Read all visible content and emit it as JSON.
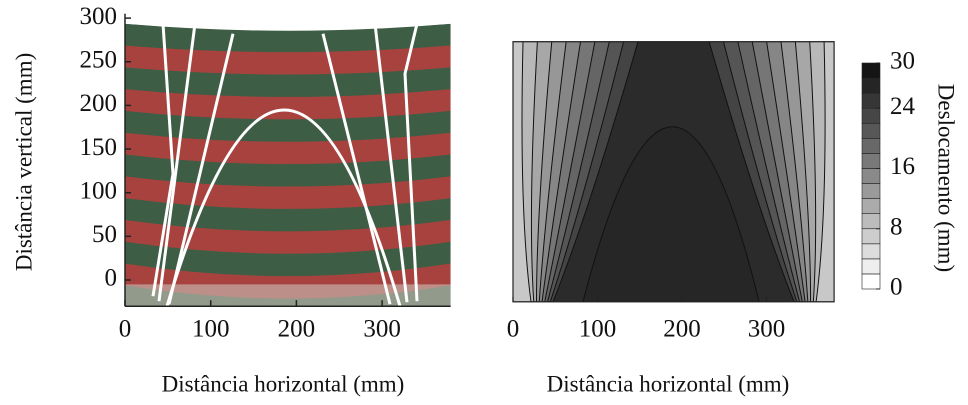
{
  "chart_data": [
    {
      "type": "photo",
      "xlabel": "Distância horizontal (mm)",
      "ylabel": "Distância vertical (mm)",
      "xlim": [
        0,
        380
      ],
      "ylim": [
        -30,
        305
      ],
      "xticks": [
        0,
        100,
        200,
        300
      ],
      "yticks": [
        0,
        50,
        100,
        150,
        200,
        250,
        300
      ]
    },
    {
      "type": "contour",
      "xlabel": "Distância horizontal (mm)",
      "xlim": [
        0,
        380
      ],
      "ylim": [
        -25,
        273
      ],
      "xticks": [
        0,
        100,
        200,
        300
      ],
      "colorbar": {
        "label": "Deslocamento (mm)",
        "lim": [
          0,
          30
        ],
        "ticks": [
          0,
          8,
          16,
          24,
          30
        ]
      }
    }
  ]
}
